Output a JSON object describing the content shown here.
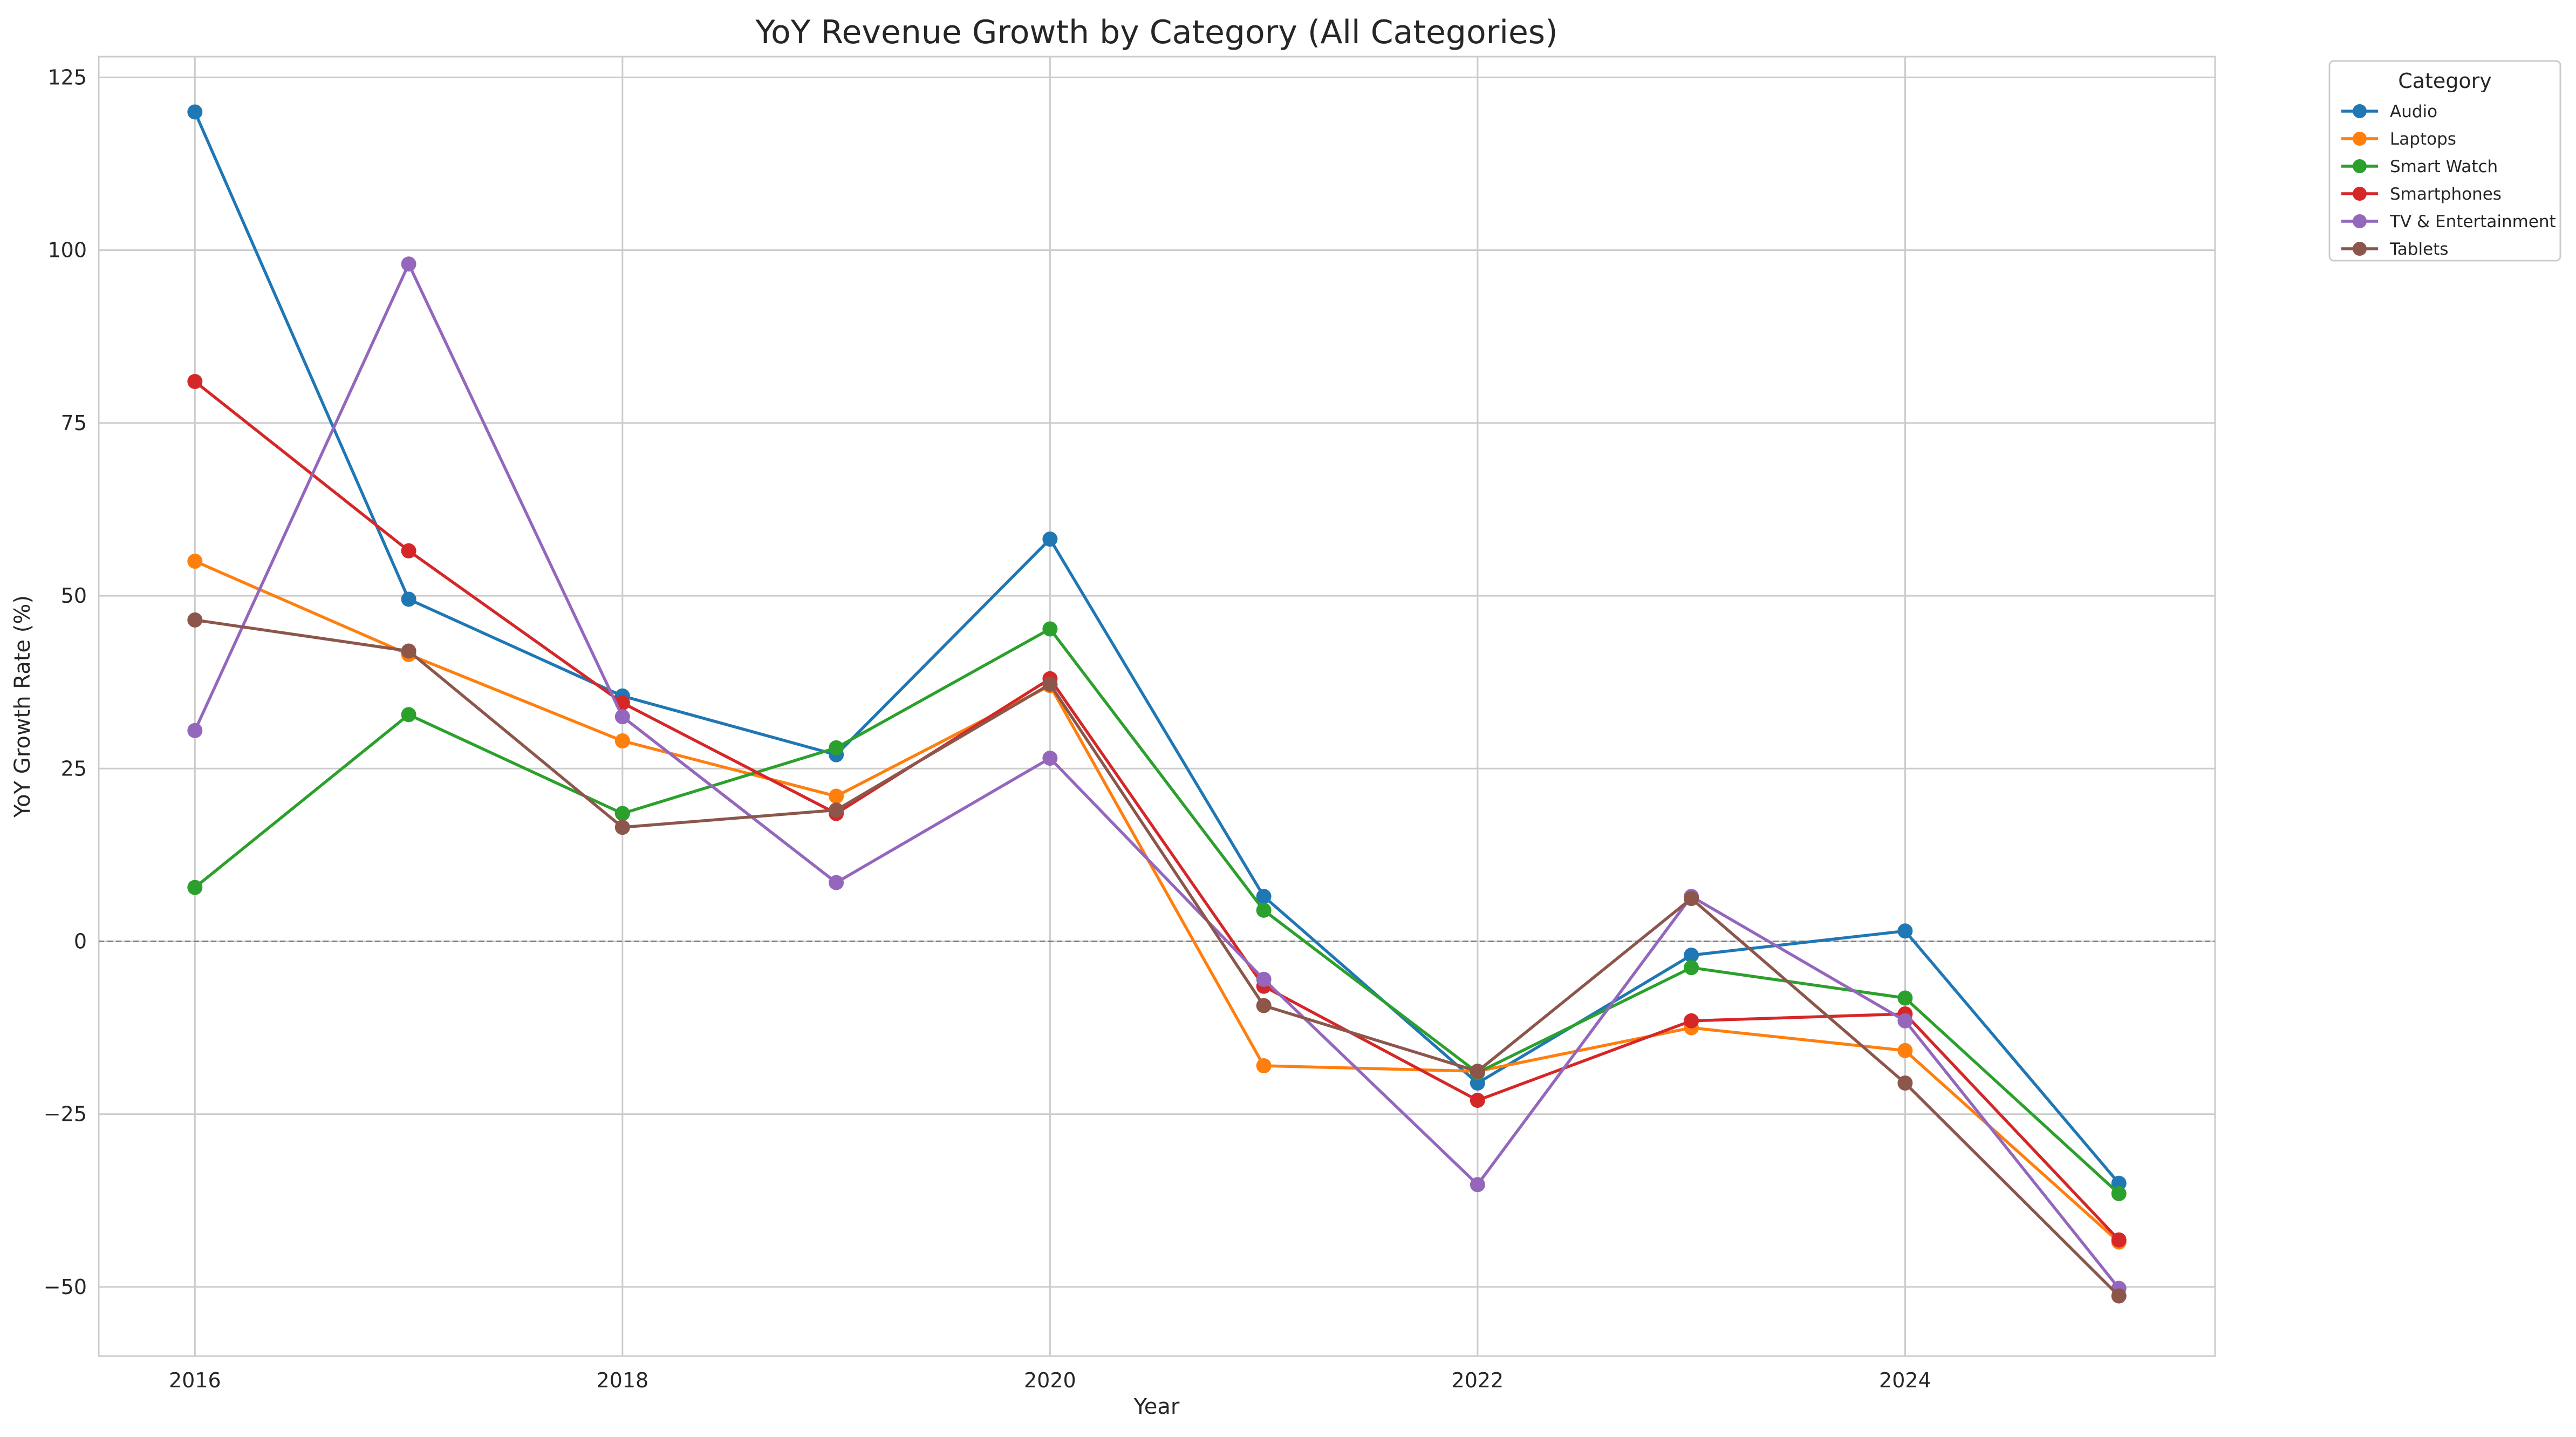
{
  "chart_data": {
    "type": "line",
    "title": "YoY Revenue Growth by Category (All Categories)",
    "xlabel": "Year",
    "ylabel": "YoY Growth Rate (%)",
    "x": [
      2016,
      2017,
      2018,
      2019,
      2020,
      2021,
      2022,
      2023,
      2024,
      2025
    ],
    "xlim": [
      2015.55,
      2025.45
    ],
    "ylim": [
      -60,
      128
    ],
    "x_ticks": [
      2016,
      2018,
      2020,
      2022,
      2024
    ],
    "y_ticks": [
      -50,
      -25,
      0,
      25,
      50,
      75,
      100,
      125
    ],
    "grid": true,
    "zero_reference_line": true,
    "legend": {
      "title": "Category",
      "placement": "outside top-right"
    },
    "series": [
      {
        "name": "Audio",
        "color": "#1f77b4",
        "values": [
          120.0,
          49.5,
          35.5,
          27.0,
          58.2,
          6.5,
          -20.5,
          -2.0,
          1.5,
          -35.0
        ]
      },
      {
        "name": "Laptops",
        "color": "#ff7f0e",
        "values": [
          55.0,
          41.5,
          29.0,
          21.0,
          37.0,
          -18.0,
          -18.8,
          -12.5,
          -15.8,
          -43.5
        ]
      },
      {
        "name": "Smart Watch",
        "color": "#2ca02c",
        "values": [
          7.8,
          32.8,
          18.5,
          28.0,
          45.2,
          4.5,
          -19.0,
          -3.8,
          -8.2,
          -36.5
        ]
      },
      {
        "name": "Smartphones",
        "color": "#d62728",
        "values": [
          81.0,
          56.5,
          34.5,
          18.5,
          38.0,
          -6.5,
          -23.0,
          -11.5,
          -10.5,
          -43.2
        ]
      },
      {
        "name": "TV & Entertainment",
        "color": "#9467bd",
        "values": [
          30.5,
          98.0,
          32.5,
          8.5,
          26.5,
          -5.5,
          -35.2,
          6.5,
          -11.5,
          -50.2
        ]
      },
      {
        "name": "Tablets",
        "color": "#8c564b",
        "values": [
          46.5,
          42.0,
          16.5,
          19.0,
          37.2,
          -9.3,
          -18.8,
          6.2,
          -20.5,
          -51.3
        ]
      }
    ]
  }
}
